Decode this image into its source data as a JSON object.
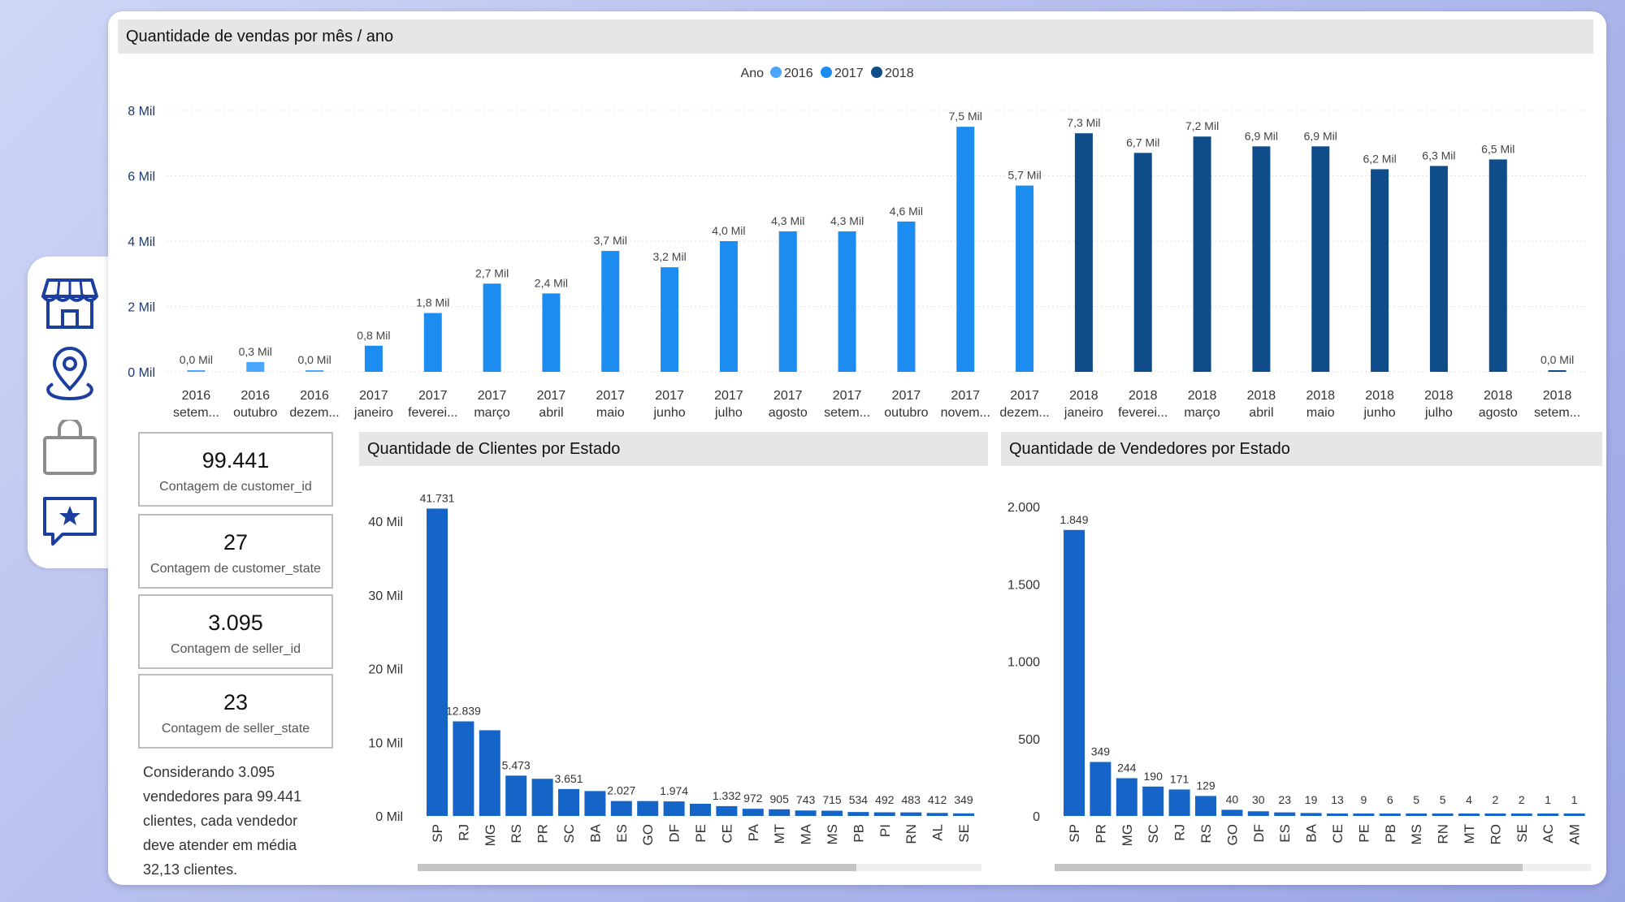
{
  "colors": {
    "y2016": "#4aa6ff",
    "y2017": "#1c8cf0",
    "y2018": "#0f4c8a",
    "bar": "#1565c8"
  },
  "sidebar": {
    "icons": [
      "store-icon",
      "location-pin-icon",
      "shopping-bag-icon",
      "star-message-icon"
    ]
  },
  "kpis": [
    {
      "value": "99.441",
      "label": "Contagem de customer_id"
    },
    {
      "value": "27",
      "label": "Contagem de customer_state"
    },
    {
      "value": "3.095",
      "label": "Contagem de seller_id"
    },
    {
      "value": "23",
      "label": "Contagem de seller_state"
    }
  ],
  "note": "Considerando 3.095 vendedores para 99.441 clientes, cada vendedor deve atender em média 32,13 clientes.",
  "chart_data": [
    {
      "type": "bar",
      "title": "Quantidade de vendas por mês / ano",
      "legend": {
        "title": "Ano",
        "position": "top-center",
        "entries": [
          "2016",
          "2017",
          "2018"
        ]
      },
      "categories": [
        {
          "year": "2016",
          "month": "setem..."
        },
        {
          "year": "2016",
          "month": "outubro"
        },
        {
          "year": "2016",
          "month": "dezem..."
        },
        {
          "year": "2017",
          "month": "janeiro"
        },
        {
          "year": "2017",
          "month": "feverei..."
        },
        {
          "year": "2017",
          "month": "março"
        },
        {
          "year": "2017",
          "month": "abril"
        },
        {
          "year": "2017",
          "month": "maio"
        },
        {
          "year": "2017",
          "month": "junho"
        },
        {
          "year": "2017",
          "month": "julho"
        },
        {
          "year": "2017",
          "month": "agosto"
        },
        {
          "year": "2017",
          "month": "setem..."
        },
        {
          "year": "2017",
          "month": "outubro"
        },
        {
          "year": "2017",
          "month": "novem..."
        },
        {
          "year": "2017",
          "month": "dezem..."
        },
        {
          "year": "2018",
          "month": "janeiro"
        },
        {
          "year": "2018",
          "month": "feverei..."
        },
        {
          "year": "2018",
          "month": "março"
        },
        {
          "year": "2018",
          "month": "abril"
        },
        {
          "year": "2018",
          "month": "maio"
        },
        {
          "year": "2018",
          "month": "junho"
        },
        {
          "year": "2018",
          "month": "julho"
        },
        {
          "year": "2018",
          "month": "agosto"
        },
        {
          "year": "2018",
          "month": "setem..."
        }
      ],
      "values": [
        0.04,
        0.3,
        0.02,
        0.8,
        1.8,
        2.7,
        2.4,
        3.7,
        3.2,
        4.0,
        4.3,
        4.3,
        4.6,
        7.5,
        5.7,
        7.3,
        6.7,
        7.2,
        6.9,
        6.9,
        6.2,
        6.3,
        6.5,
        0.02
      ],
      "data_labels": [
        "0,0 Mil",
        "0,3 Mil",
        "0,0 Mil",
        "0,8 Mil",
        "1,8 Mil",
        "2,7 Mil",
        "2,4 Mil",
        "3,7 Mil",
        "3,2 Mil",
        "4,0 Mil",
        "4,3 Mil",
        "4,3 Mil",
        "4,6 Mil",
        "7,5 Mil",
        "5,7 Mil",
        "7,3 Mil",
        "6,7 Mil",
        "7,2 Mil",
        "6,9 Mil",
        "6,9 Mil",
        "6,2 Mil",
        "6,3 Mil",
        "6,5 Mil",
        "0,0 Mil"
      ],
      "ylim": [
        0,
        8
      ],
      "yticks": [
        {
          "v": 0,
          "label": "0 Mil"
        },
        {
          "v": 2,
          "label": "2 Mil"
        },
        {
          "v": 4,
          "label": "4 Mil"
        },
        {
          "v": 6,
          "label": "6 Mil"
        },
        {
          "v": 8,
          "label": "8 Mil"
        }
      ],
      "grid": true
    },
    {
      "type": "bar",
      "title": "Quantidade de Clientes por Estado",
      "categories": [
        "SP",
        "RJ",
        "MG",
        "RS",
        "PR",
        "SC",
        "BA",
        "ES",
        "GO",
        "DF",
        "PE",
        "CE",
        "PA",
        "MT",
        "MA",
        "MS",
        "PB",
        "PI",
        "RN",
        "AL",
        "SE"
      ],
      "values": [
        41731,
        12839,
        11635,
        5473,
        5045,
        3651,
        3380,
        2027,
        2020,
        1974,
        1652,
        1332,
        972,
        905,
        743,
        715,
        534,
        492,
        483,
        412,
        349
      ],
      "data_labels": [
        "41.731",
        "12.839",
        "",
        "5.473",
        "",
        "3.651",
        "",
        "2.027",
        "",
        "1.974",
        "",
        "1.332",
        "972",
        "905",
        "743",
        "715",
        "534",
        "492",
        "483",
        "412",
        "349"
      ],
      "ylim": [
        0,
        42000
      ],
      "yticks": [
        {
          "v": 0,
          "label": "0 Mil"
        },
        {
          "v": 10000,
          "label": "10 Mil"
        },
        {
          "v": 20000,
          "label": "20 Mil"
        },
        {
          "v": 30000,
          "label": "30 Mil"
        },
        {
          "v": 40000,
          "label": "40 Mil"
        }
      ],
      "grid": false
    },
    {
      "type": "bar",
      "title": "Quantidade de Vendedores por Estado",
      "categories": [
        "SP",
        "PR",
        "MG",
        "SC",
        "RJ",
        "RS",
        "GO",
        "DF",
        "ES",
        "BA",
        "CE",
        "PE",
        "PB",
        "MS",
        "RN",
        "MT",
        "RO",
        "SE",
        "AC",
        "AM"
      ],
      "values": [
        1849,
        349,
        244,
        190,
        171,
        129,
        40,
        30,
        23,
        19,
        13,
        9,
        6,
        5,
        5,
        4,
        2,
        2,
        1,
        1
      ],
      "data_labels": [
        "1.849",
        "349",
        "244",
        "190",
        "171",
        "129",
        "40",
        "30",
        "23",
        "19",
        "13",
        "9",
        "6",
        "5",
        "5",
        "4",
        "2",
        "2",
        "1",
        "1"
      ],
      "ylim": [
        0,
        2000
      ],
      "yticks": [
        {
          "v": 0,
          "label": "0"
        },
        {
          "v": 500,
          "label": "500"
        },
        {
          "v": 1000,
          "label": "1.000"
        },
        {
          "v": 1500,
          "label": "1.500"
        },
        {
          "v": 2000,
          "label": "2.000"
        }
      ],
      "grid": false
    }
  ]
}
